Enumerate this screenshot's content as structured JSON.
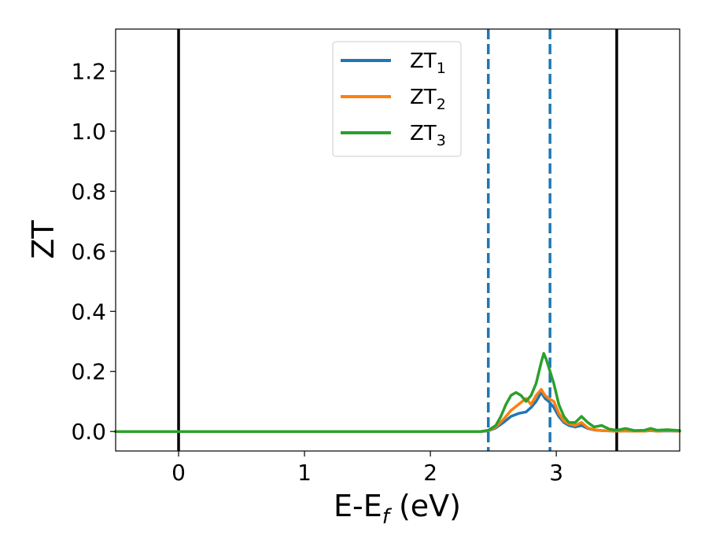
{
  "chart_data": {
    "type": "line",
    "xlabel": "E-E",
    "xlabel_sub": "f",
    "xlabel_unit": " (eV)",
    "ylabel": "ZT",
    "xlim": [
      -0.5,
      3.98
    ],
    "ylim": [
      -0.065,
      1.34
    ],
    "xticks": [
      0,
      1,
      2,
      3
    ],
    "yticks": [
      0.0,
      0.2,
      0.4,
      0.6,
      0.8,
      1.0,
      1.2
    ],
    "ytick_labels": [
      "0.0",
      "0.2",
      "0.4",
      "0.6",
      "0.8",
      "1.0",
      "1.2"
    ],
    "grid": false,
    "legend_position": "top-center",
    "vlines": [
      {
        "x": 0.0,
        "color": "#000000",
        "style": "solid"
      },
      {
        "x": 3.48,
        "color": "#000000",
        "style": "solid"
      },
      {
        "x": 2.46,
        "color": "#1f77b4",
        "style": "dashed"
      },
      {
        "x": 2.95,
        "color": "#1f77b4",
        "style": "dashed"
      }
    ],
    "series": [
      {
        "name": "ZT",
        "name_sub": "1",
        "color": "#1f77b4",
        "x": [
          -0.5,
          2.4,
          2.46,
          2.52,
          2.58,
          2.64,
          2.7,
          2.76,
          2.8,
          2.84,
          2.88,
          2.91,
          2.94,
          2.98,
          3.02,
          3.06,
          3.1,
          3.15,
          3.2,
          3.25,
          3.3,
          3.36,
          3.42,
          3.48,
          3.55,
          3.62,
          3.7,
          3.75,
          3.8,
          3.88,
          3.98
        ],
        "y": [
          0,
          0,
          0.002,
          0.012,
          0.03,
          0.05,
          0.06,
          0.065,
          0.08,
          0.1,
          0.13,
          0.11,
          0.1,
          0.08,
          0.05,
          0.03,
          0.02,
          0.015,
          0.02,
          0.01,
          0.005,
          0.003,
          0.002,
          0.001,
          0.002,
          0.001,
          0.001,
          0.003,
          0.001,
          0.002,
          0.001
        ]
      },
      {
        "name": "ZT",
        "name_sub": "2",
        "color": "#ff7f0e",
        "x": [
          -0.5,
          2.4,
          2.46,
          2.52,
          2.58,
          2.64,
          2.7,
          2.76,
          2.8,
          2.84,
          2.88,
          2.91,
          2.94,
          2.98,
          3.02,
          3.06,
          3.1,
          3.15,
          3.2,
          3.25,
          3.3,
          3.36,
          3.42,
          3.48,
          3.55,
          3.62,
          3.7,
          3.75,
          3.8,
          3.88,
          3.98
        ],
        "y": [
          0,
          0,
          0.003,
          0.015,
          0.04,
          0.07,
          0.09,
          0.11,
          0.09,
          0.12,
          0.14,
          0.12,
          0.11,
          0.1,
          0.06,
          0.035,
          0.025,
          0.02,
          0.03,
          0.012,
          0.006,
          0.003,
          0.002,
          0.001,
          0.002,
          0.001,
          0.001,
          0.004,
          0.001,
          0.003,
          0.001
        ]
      },
      {
        "name": "ZT",
        "name_sub": "3",
        "color": "#2ca02c",
        "x": [
          -0.5,
          2.4,
          2.46,
          2.52,
          2.56,
          2.6,
          2.64,
          2.68,
          2.72,
          2.76,
          2.8,
          2.84,
          2.88,
          2.9,
          2.92,
          2.95,
          2.98,
          3.02,
          3.06,
          3.1,
          3.15,
          3.2,
          3.25,
          3.3,
          3.36,
          3.42,
          3.48,
          3.55,
          3.62,
          3.7,
          3.75,
          3.8,
          3.88,
          3.98
        ],
        "y": [
          0,
          0,
          0.004,
          0.02,
          0.05,
          0.09,
          0.12,
          0.13,
          0.12,
          0.1,
          0.12,
          0.16,
          0.23,
          0.26,
          0.24,
          0.2,
          0.16,
          0.09,
          0.05,
          0.03,
          0.03,
          0.05,
          0.03,
          0.015,
          0.02,
          0.008,
          0.004,
          0.01,
          0.003,
          0.004,
          0.01,
          0.004,
          0.006,
          0.003
        ]
      }
    ]
  }
}
